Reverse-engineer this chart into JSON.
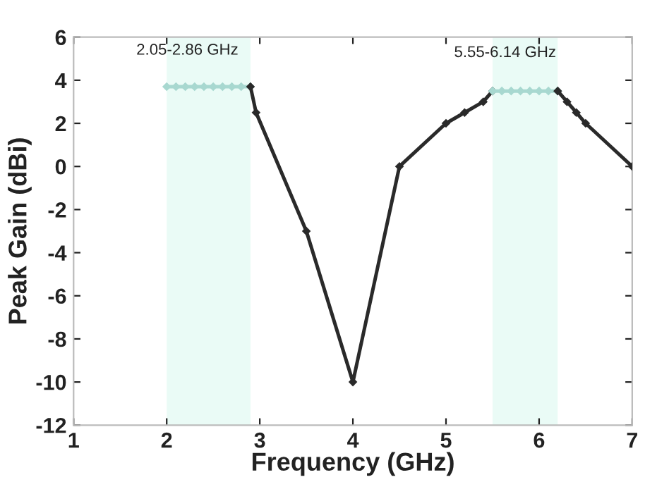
{
  "chart_data": {
    "type": "line",
    "xlabel": "Frequency (GHz)",
    "ylabel": "Peak Gain (dBi)",
    "xlim": [
      1,
      7
    ],
    "ylim": [
      -12,
      6
    ],
    "xticks": [
      1,
      2,
      3,
      4,
      5,
      6,
      7
    ],
    "yticks": [
      -12,
      -10,
      -8,
      -6,
      -4,
      -2,
      0,
      2,
      4,
      6
    ],
    "grid": false,
    "legend": false,
    "marker": "diamond",
    "line_style": "solid",
    "series": [
      {
        "color": "#a8d8d0",
        "x": [
          2.0,
          2.1,
          2.2,
          2.3,
          2.4,
          2.5,
          2.6,
          2.7,
          2.8,
          2.9
        ],
        "values": [
          3.7,
          3.7,
          3.7,
          3.7,
          3.7,
          3.7,
          3.7,
          3.7,
          3.7,
          3.7
        ]
      },
      {
        "color": "#2a2a2a",
        "x": [
          2.9,
          2.96,
          3.5,
          4,
          4.5,
          5,
          5.2,
          5.4,
          5.5
        ],
        "values": [
          3.7,
          2.5,
          -3,
          -10,
          0,
          2,
          2.5,
          3,
          3.5
        ]
      },
      {
        "color": "#a8d8d0",
        "x": [
          5.5,
          5.6,
          5.7,
          5.8,
          5.9,
          6.0,
          6.1,
          6.2
        ],
        "values": [
          3.5,
          3.5,
          3.5,
          3.5,
          3.5,
          3.5,
          3.5,
          3.5
        ]
      },
      {
        "color": "#2a2a2a",
        "x": [
          6.2,
          6.3,
          6.4,
          6.5,
          7
        ],
        "values": [
          3.5,
          3,
          2.5,
          2,
          0
        ]
      }
    ],
    "bands": [
      {
        "axis": "x",
        "from": 2,
        "to": 2.9,
        "color": "#eafbf6"
      },
      {
        "axis": "x",
        "from": 5.5,
        "to": 6.2,
        "color": "#eafbf6"
      }
    ],
    "annotations": [
      "2.05-2.86 GHz",
      "5.55-6.14 GHz"
    ]
  }
}
